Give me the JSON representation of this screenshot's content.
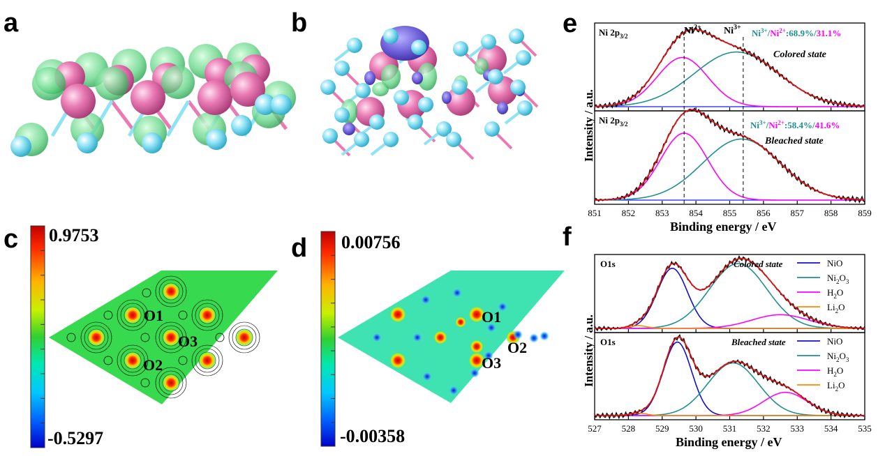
{
  "panels": {
    "a": "a",
    "b": "b",
    "c": "c",
    "d": "d",
    "e": "e",
    "f": "f"
  },
  "colors": {
    "ni": "#e97ab4",
    "o": "#8fe3f5",
    "accum": "#4fd07a",
    "deplete": "#6a5cd6",
    "fit": "#e01010",
    "raw": "#000000",
    "ni2": "#ff00ff",
    "ni3": "#1f8f8f",
    "nio": "#1010d0",
    "ni2o3": "#1f8f8f",
    "h2o": "#ff00ff",
    "li2o": "#ff8c00",
    "base": "#1a1aff"
  },
  "panel_c": {
    "colorbar_max": "0.9753",
    "colorbar_min": "-0.5297",
    "labels": [
      "O1",
      "O3",
      "O2"
    ]
  },
  "panel_d": {
    "colorbar_max": "0.00756",
    "colorbar_min": "-0.00358",
    "labels": [
      "O1",
      "O2",
      "O3"
    ]
  },
  "panel_e": {
    "ylabel": "Intensity / a.u.",
    "xlabel": "Binding energy / eV",
    "top": {
      "label": "Ni 2p",
      "label_sub": "3/2",
      "state": "Colored state",
      "ratio_a": "Ni",
      "ratio_a_sup": "3+",
      "slash1": "/",
      "ratio_b": "Ni",
      "ratio_b_sup": "2+",
      "ratio_val1": ":68.9%",
      "slash2": "/",
      "ratio_val2": "31.1%"
    },
    "bottom": {
      "label": "Ni 2p",
      "label_sub": "3/2",
      "state": "Bleached state",
      "ratio_a": "Ni",
      "ratio_a_sup": "3+",
      "slash1": "/",
      "ratio_b": "Ni",
      "ratio_b_sup": "2+",
      "ratio_val1": ":58.4%",
      "slash2": "/",
      "ratio_val2": "41.6%"
    },
    "peak_labels": [
      {
        "main": "Ni",
        "sup": "2+"
      },
      {
        "main": "Ni",
        "sup": "3+"
      }
    ]
  },
  "panel_f": {
    "ylabel": "Intensity / a.u.",
    "xlabel": "Binding energy / eV",
    "top": {
      "label": "O1s",
      "state": "Colored state"
    },
    "bottom": {
      "label": "O1s",
      "state": "Bleached state"
    },
    "legend": [
      {
        "main": "NiO",
        "sub": "",
        "rest": ""
      },
      {
        "main": "Ni",
        "sub": "2",
        "rest": "O",
        "sub2": "3"
      },
      {
        "main": "H",
        "sub": "2",
        "rest": "O",
        "sub2": ""
      },
      {
        "main": "Li",
        "sub": "2",
        "rest": "O",
        "sub2": ""
      }
    ]
  },
  "chart_data": [
    {
      "type": "line",
      "panel": "e",
      "xlabel": "Binding energy / eV",
      "ylabel": "Intensity / a.u.",
      "xlim": [
        851,
        859
      ],
      "xticks": [
        "851",
        "852",
        "853",
        "854",
        "855",
        "856",
        "857",
        "858",
        "859"
      ],
      "reference_lines": [
        853.65,
        855.4
      ],
      "series": [
        {
          "name": "Colored state",
          "components": [
            {
              "center": 853.6,
              "width": 0.75,
              "height": 0.63,
              "color": "ni2"
            },
            {
              "center": 855.2,
              "width": 1.25,
              "height": 0.7,
              "color": "ni3"
            }
          ],
          "ratio": {
            "Ni3+": 68.9,
            "Ni2+": 31.1
          }
        },
        {
          "name": "Bleached state",
          "components": [
            {
              "center": 853.65,
              "width": 0.7,
              "height": 0.8,
              "color": "ni2"
            },
            {
              "center": 855.35,
              "width": 1.15,
              "height": 0.73,
              "color": "ni3"
            }
          ],
          "ratio": {
            "Ni3+": 58.4,
            "Ni2+": 41.6
          }
        }
      ]
    },
    {
      "type": "line",
      "panel": "f",
      "xlabel": "Binding energy / eV",
      "ylabel": "Intensity / a.u.",
      "xlim": [
        527,
        535
      ],
      "xticks": [
        "527",
        "528",
        "529",
        "530",
        "531",
        "532",
        "533",
        "534",
        "535"
      ],
      "series": [
        {
          "name": "Colored state",
          "components": [
            {
              "name": "NiO",
              "center": 529.3,
              "width": 0.45,
              "height": 0.88,
              "color": "nio"
            },
            {
              "name": "Ni2O3",
              "center": 531.25,
              "width": 0.85,
              "height": 0.95,
              "color": "ni2o3"
            },
            {
              "name": "H2O",
              "center": 532.5,
              "width": 0.85,
              "height": 0.2,
              "color": "h2o"
            },
            {
              "name": "Li2O",
              "center": 528.3,
              "width": 0.25,
              "height": 0.04,
              "color": "li2o"
            }
          ]
        },
        {
          "name": "Bleached state",
          "components": [
            {
              "name": "NiO",
              "center": 529.45,
              "width": 0.42,
              "height": 0.95,
              "color": "nio"
            },
            {
              "name": "Ni2O3",
              "center": 531.1,
              "width": 0.75,
              "height": 0.68,
              "color": "ni2o3"
            },
            {
              "name": "H2O",
              "center": 532.65,
              "width": 0.65,
              "height": 0.3,
              "color": "h2o"
            },
            {
              "name": "Li2O",
              "center": 528.3,
              "width": 0.25,
              "height": 0.03,
              "color": "li2o"
            }
          ]
        }
      ]
    }
  ]
}
